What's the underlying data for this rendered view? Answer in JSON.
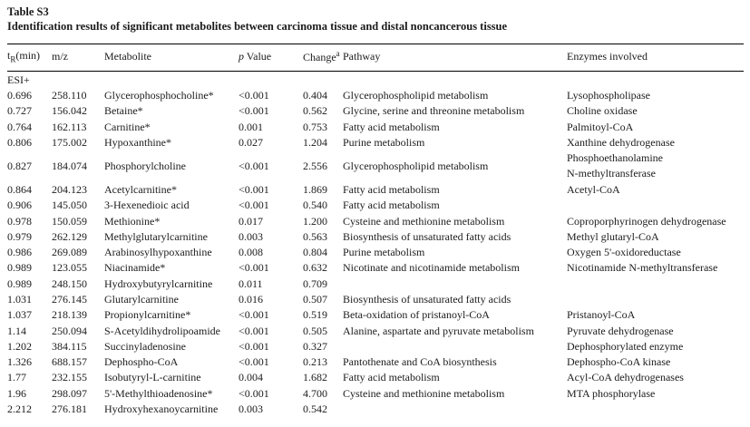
{
  "table": {
    "id_label": "Table S3",
    "caption": "Identification results of significant metabolites between carcinoma tissue and distal noncancerous tissue",
    "columns": {
      "rt": {
        "pre": "t",
        "sub": "R",
        "post": "(min)"
      },
      "mz": {
        "text": "m/z"
      },
      "metabolite": {
        "text": "Metabolite"
      },
      "p": {
        "italic": "p",
        "post": " Value"
      },
      "change": {
        "text": "Change",
        "sup": "a"
      },
      "pathway": {
        "text": "Pathway"
      },
      "enzymes": {
        "text": "Enzymes involved"
      }
    },
    "rows": [
      {
        "section": "ESI+"
      },
      {
        "rt": "0.696",
        "mz": "258.110",
        "metabolite": "Glycerophosphocholine*",
        "p": "<0.001",
        "change": "0.404",
        "pathway": "Glycerophospholipid metabolism",
        "enzymes": [
          "Lysophospholipase"
        ]
      },
      {
        "rt": "0.727",
        "mz": "156.042",
        "metabolite": "Betaine*",
        "p": "<0.001",
        "change": "0.562",
        "pathway": "Glycine, serine and threonine metabolism",
        "enzymes": [
          "Choline oxidase"
        ]
      },
      {
        "rt": "0.764",
        "mz": "162.113",
        "metabolite": "Carnitine*",
        "p": "0.001",
        "change": "0.753",
        "pathway": "Fatty acid metabolism",
        "enzymes": [
          "Palmitoyl-CoA"
        ]
      },
      {
        "rt": "0.806",
        "mz": "175.002",
        "metabolite": "Hypoxanthine*",
        "p": "0.027",
        "change": "1.204",
        "pathway": "Purine metabolism",
        "enzymes": [
          "Xanthine dehydrogenase"
        ]
      },
      {
        "rt": "0.827",
        "mz": "184.074",
        "metabolite": "Phosphorylcholine",
        "p": "<0.001",
        "change": "2.556",
        "pathway": "Glycerophospholipid metabolism",
        "enzymes": [
          "Phosphoethanolamine",
          "N-methyltransferase"
        ]
      },
      {
        "rt": "0.864",
        "mz": "204.123",
        "metabolite": "Acetylcarnitine*",
        "p": "<0.001",
        "change": "1.869",
        "pathway": "Fatty acid metabolism",
        "enzymes": [
          "Acetyl-CoA"
        ]
      },
      {
        "rt": "0.906",
        "mz": "145.050",
        "metabolite": "3-Hexenedioic acid",
        "p": "<0.001",
        "change": "0.540",
        "pathway": "Fatty acid metabolism",
        "enzymes": []
      },
      {
        "rt": "0.978",
        "mz": "150.059",
        "metabolite": "Methionine*",
        "p": "0.017",
        "change": "1.200",
        "pathway": "Cysteine and methionine metabolism",
        "enzymes": [
          "Coproporphyrinogen dehydrogenase"
        ]
      },
      {
        "rt": "0.979",
        "mz": "262.129",
        "metabolite": "Methylglutarylcarnitine",
        "p": "0.003",
        "change": "0.563",
        "pathway": "Biosynthesis of unsaturated fatty acids",
        "enzymes": [
          "Methyl glutaryl-CoA"
        ]
      },
      {
        "rt": "0.986",
        "mz": "269.089",
        "metabolite": "Arabinosylhypoxanthine",
        "p": "0.008",
        "change": "0.804",
        "pathway": "Purine metabolism",
        "enzymes": [
          "Oxygen 5'-oxidoreductase"
        ]
      },
      {
        "rt": "0.989",
        "mz": "123.055",
        "metabolite": "Niacinamide*",
        "p": "<0.001",
        "change": "0.632",
        "pathway": "Nicotinate and nicotinamide metabolism",
        "enzymes": [
          "Nicotinamide N-methyltransferase"
        ]
      },
      {
        "rt": "0.989",
        "mz": "248.150",
        "metabolite": "Hydroxybutyrylcarnitine",
        "p": "0.011",
        "change": "0.709",
        "pathway": "",
        "enzymes": []
      },
      {
        "rt": "1.031",
        "mz": "276.145",
        "metabolite": "Glutarylcarnitine",
        "p": "0.016",
        "change": "0.507",
        "pathway": "Biosynthesis of unsaturated fatty acids",
        "enzymes": []
      },
      {
        "rt": "1.037",
        "mz": "218.139",
        "metabolite": "Propionylcarnitine*",
        "p": "<0.001",
        "change": "0.519",
        "pathway": "Beta-oxidation of pristanoyl-CoA",
        "enzymes": [
          "Pristanoyl-CoA"
        ]
      },
      {
        "rt": "1.14",
        "mz": "250.094",
        "metabolite": "S-Acetyldihydrolipoamide",
        "p": "<0.001",
        "change": "0.505",
        "pathway": "Alanine, aspartate and pyruvate metabolism",
        "enzymes": [
          "Pyruvate dehydrogenase"
        ]
      },
      {
        "rt": "1.202",
        "mz": "384.115",
        "metabolite": "Succinyladenosine",
        "p": "<0.001",
        "change": "0.327",
        "pathway": "",
        "enzymes": [
          "Dephosphorylated enzyme"
        ]
      },
      {
        "rt": "1.326",
        "mz": "688.157",
        "metabolite": "Dephospho-CoA",
        "p": "<0.001",
        "change": "0.213",
        "pathway": "Pantothenate and CoA biosynthesis",
        "enzymes": [
          "Dephospho-CoA kinase"
        ]
      },
      {
        "rt": "1.77",
        "mz": "232.155",
        "metabolite": "Isobutyryl-L-carnitine",
        "p": "0.004",
        "change": "1.682",
        "pathway": "Fatty acid metabolism",
        "enzymes": [
          "Acyl-CoA dehydrogenases"
        ]
      },
      {
        "rt": "1.96",
        "mz": "298.097",
        "metabolite": "5'-Methylthioadenosine*",
        "p": "<0.001",
        "change": "4.700",
        "pathway": "Cysteine and methionine metabolism",
        "enzymes": [
          "MTA phosphorylase"
        ]
      },
      {
        "rt": "2.212",
        "mz": "276.181",
        "metabolite": "Hydroxyhexanoycarnitine",
        "p": "0.003",
        "change": "0.542",
        "pathway": "",
        "enzymes": []
      }
    ]
  }
}
